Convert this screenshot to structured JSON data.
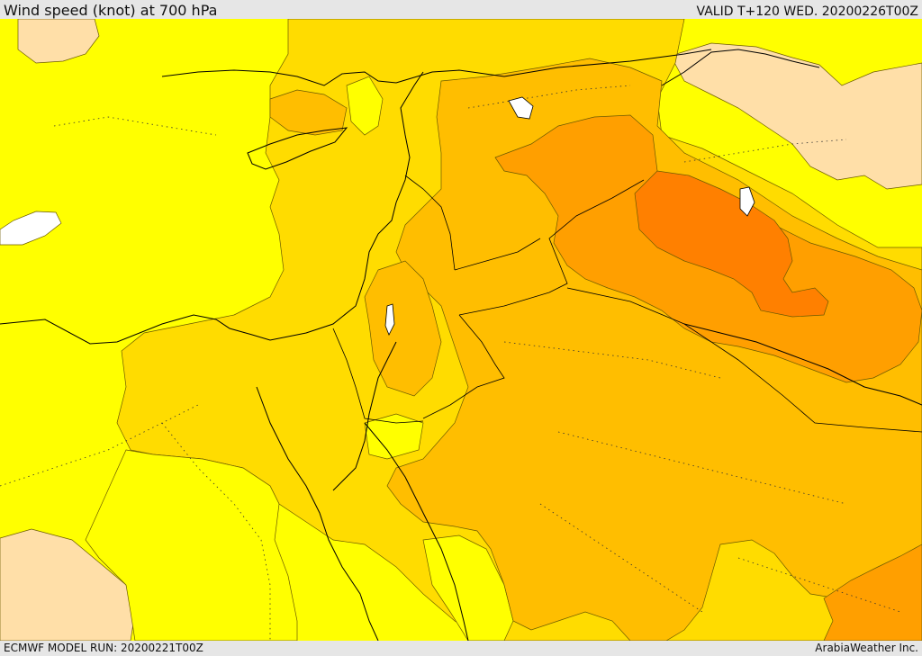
{
  "header": {
    "title": "Wind speed (knot) at 700 hPa",
    "valid": "VALID T+120 WED. 20200226T00Z"
  },
  "footer": {
    "model_run": "ECMWF MODEL RUN: 20200221T00Z",
    "credit": "ArabiaWeather Inc."
  },
  "colors": {
    "level_0": "#ffffff",
    "level_1": "#ffdfa8",
    "level_2": "#ffff00",
    "level_3": "#ffdc00",
    "level_4": "#ffbe00",
    "level_5": "#ff9f00",
    "level_6": "#ff8000",
    "coastline": "#000000",
    "contour": "#6b5a00"
  }
}
